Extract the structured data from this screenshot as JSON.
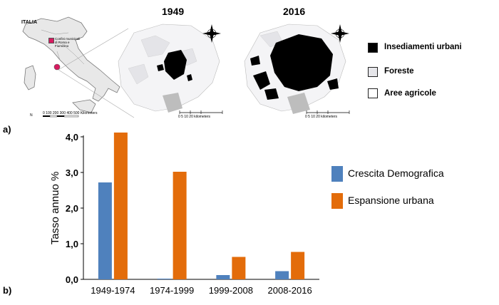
{
  "panel_a": {
    "letter": "a)",
    "italy_label": "ITALIA",
    "inset_legend": "Confini municipali di Roma e Fiumicino",
    "inset_scale": "0   100   200   300   400   500 Kilometers",
    "maps": [
      {
        "year": "1949",
        "scale": "0    5    10         20 kilometers"
      },
      {
        "year": "2016",
        "scale": "0    5    10         20 kilometers"
      }
    ],
    "legend": [
      {
        "label": "Insediamenti urbani",
        "color": "#000000"
      },
      {
        "label": "Foreste",
        "color": "#e6e6ea"
      },
      {
        "label": "Aree agricole",
        "color": "#ffffff"
      }
    ]
  },
  "panel_b": {
    "letter": "b)"
  },
  "chart_data": {
    "type": "bar",
    "categories": [
      "1949-1974",
      "1974-1999",
      "1999-2008",
      "2008-2016"
    ],
    "series": [
      {
        "name": "Crescita Demografica",
        "color": "#4f81bd",
        "values": [
          2.72,
          0.02,
          0.12,
          0.23
        ]
      },
      {
        "name": "Espansione urbana",
        "color": "#e36c0a",
        "values": [
          4.12,
          3.02,
          0.63,
          0.77
        ]
      }
    ],
    "ylabel": "Tasso annuo %",
    "xlabel": "",
    "ylim": [
      0,
      4
    ],
    "yticks": [
      "0,0",
      "1,0",
      "2,0",
      "3,0",
      "4,0"
    ],
    "grid": false,
    "legend_position": "right"
  }
}
